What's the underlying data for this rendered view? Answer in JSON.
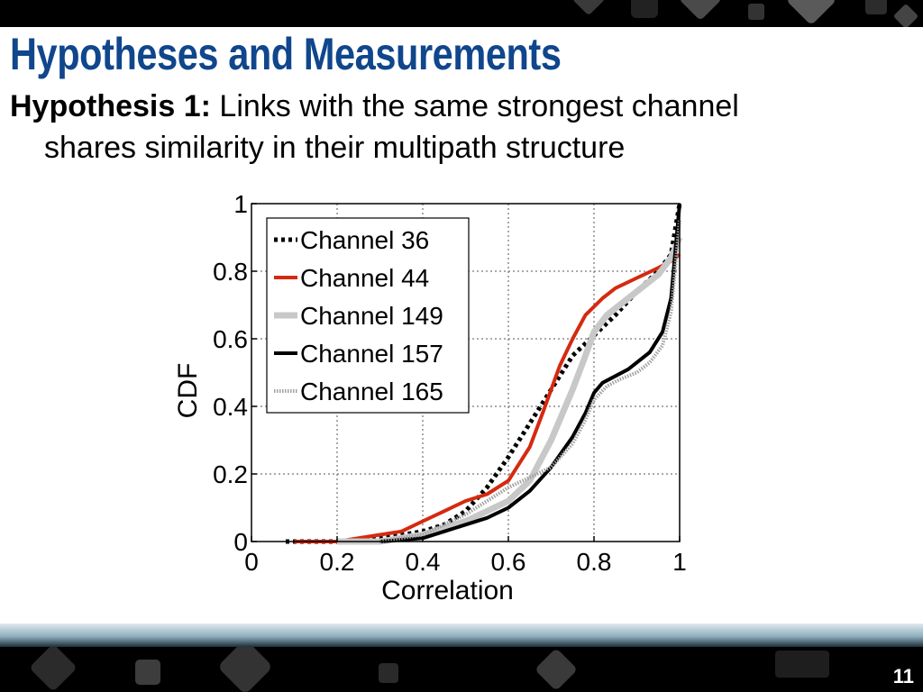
{
  "slide": {
    "title": "Hypotheses and Measurements",
    "hypothesis_label": "Hypothesis 1:",
    "hypothesis_line1": "Links with the same strongest channel",
    "hypothesis_line2": "shares similarity in their multipath structure",
    "page_number": "11"
  },
  "chart_data": {
    "type": "line",
    "title": "",
    "xlabel": "Correlation",
    "ylabel": "CDF",
    "xlim": [
      0,
      1
    ],
    "ylim": [
      0,
      1
    ],
    "xticks": [
      "0",
      "0.2",
      "0.4",
      "0.6",
      "0.8",
      "1"
    ],
    "yticks": [
      "0",
      "0.2",
      "0.4",
      "0.6",
      "0.8",
      "1"
    ],
    "grid": true,
    "legend_position": "top-left",
    "series": [
      {
        "name": "Channel 36",
        "color": "#000000",
        "style": "dotted-thick",
        "x": [
          0.08,
          0.2,
          0.3,
          0.4,
          0.45,
          0.5,
          0.55,
          0.6,
          0.65,
          0.7,
          0.75,
          0.8,
          0.85,
          0.9,
          0.95,
          0.98,
          1.0
        ],
        "y": [
          0.0,
          0.0,
          0.01,
          0.03,
          0.05,
          0.09,
          0.16,
          0.25,
          0.35,
          0.45,
          0.55,
          0.61,
          0.67,
          0.74,
          0.8,
          0.85,
          1.0
        ]
      },
      {
        "name": "Channel 44",
        "color": "#d42a10",
        "style": "solid",
        "x": [
          0.1,
          0.2,
          0.3,
          0.35,
          0.4,
          0.45,
          0.5,
          0.55,
          0.6,
          0.65,
          0.68,
          0.72,
          0.75,
          0.78,
          0.82,
          0.85,
          0.9,
          0.95,
          0.98,
          1.0
        ],
        "y": [
          0.0,
          0.0,
          0.02,
          0.03,
          0.06,
          0.09,
          0.12,
          0.14,
          0.18,
          0.28,
          0.38,
          0.52,
          0.6,
          0.67,
          0.72,
          0.75,
          0.78,
          0.81,
          0.83,
          0.85
        ]
      },
      {
        "name": "Channel 149",
        "color": "#c8c8c8",
        "style": "solid-thick",
        "x": [
          0.2,
          0.3,
          0.4,
          0.45,
          0.5,
          0.55,
          0.6,
          0.65,
          0.7,
          0.75,
          0.78,
          0.8,
          0.83,
          0.86,
          0.9,
          0.95,
          0.98,
          1.0
        ],
        "y": [
          0.0,
          0.0,
          0.02,
          0.04,
          0.06,
          0.09,
          0.12,
          0.18,
          0.3,
          0.45,
          0.55,
          0.62,
          0.67,
          0.7,
          0.74,
          0.79,
          0.84,
          0.9
        ]
      },
      {
        "name": "Channel 157",
        "color": "#000000",
        "style": "solid",
        "x": [
          0.3,
          0.4,
          0.45,
          0.5,
          0.55,
          0.6,
          0.65,
          0.7,
          0.75,
          0.78,
          0.8,
          0.82,
          0.85,
          0.88,
          0.9,
          0.93,
          0.96,
          0.98,
          1.0
        ],
        "y": [
          0.0,
          0.01,
          0.03,
          0.05,
          0.07,
          0.1,
          0.15,
          0.22,
          0.31,
          0.38,
          0.44,
          0.47,
          0.49,
          0.51,
          0.53,
          0.56,
          0.62,
          0.72,
          1.0
        ]
      },
      {
        "name": "Channel 165",
        "color": "#a0a0a0",
        "style": "dotted",
        "x": [
          0.3,
          0.4,
          0.45,
          0.5,
          0.55,
          0.6,
          0.65,
          0.7,
          0.75,
          0.78,
          0.8,
          0.83,
          0.86,
          0.9,
          0.93,
          0.96,
          0.98,
          1.0
        ],
        "y": [
          0.0,
          0.02,
          0.05,
          0.08,
          0.12,
          0.16,
          0.19,
          0.22,
          0.29,
          0.36,
          0.42,
          0.46,
          0.48,
          0.5,
          0.53,
          0.58,
          0.68,
          0.95
        ]
      }
    ]
  }
}
